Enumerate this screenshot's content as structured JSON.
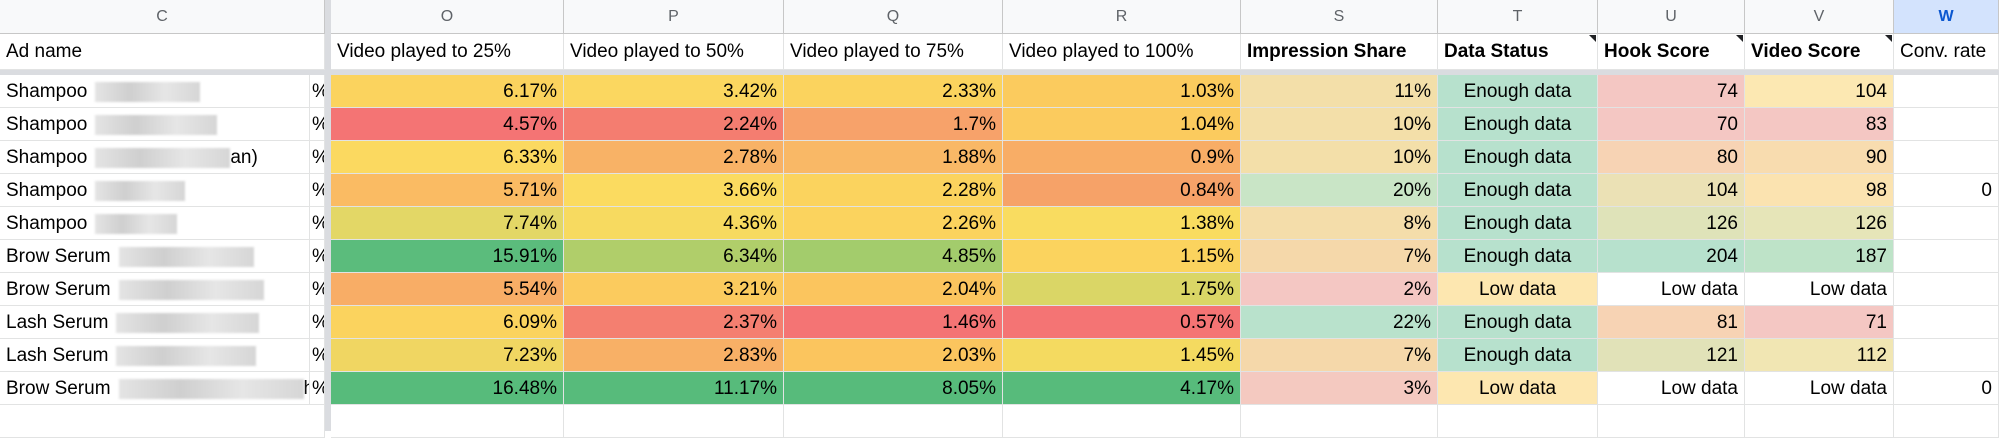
{
  "column_letters": [
    "C",
    "O",
    "P",
    "Q",
    "R",
    "S",
    "T",
    "U",
    "V",
    "W"
  ],
  "header_row": {
    "ad_name": "Ad name",
    "video_25": "Video played to 25%",
    "video_50": "Video played to 50%",
    "video_75": "Video played to 75%",
    "video_100": "Video played to 100%",
    "impression_share": "Impression Share",
    "data_status": "Data Status",
    "hook_score": "Hook Score",
    "video_score": "Video Score",
    "conv_rate": "Conv. rate"
  },
  "rows": [
    {
      "ad": "Shampoo",
      "tail": "",
      "v25": "6.17%",
      "v50": "3.42%",
      "v75": "2.33%",
      "v100": "1.03%",
      "share": "11%",
      "status": "Enough data",
      "hook": "74",
      "video": "104",
      "conv": "",
      "c25": "#fbd35e",
      "c50": "#fbd760",
      "c75": "#fbd35e",
      "c100": "#fbcb5e",
      "cshare": "#f3dfa9",
      "cstatus": "#b7e1cd",
      "chook": "#f4c7c3",
      "cvideo": "#fce8b2"
    },
    {
      "ad": "Shampoo",
      "tail": "",
      "v25": "4.57%",
      "v50": "2.24%",
      "v75": "1.7%",
      "v100": "1.04%",
      "share": "10%",
      "status": "Enough data",
      "hook": "70",
      "video": "83",
      "conv": "",
      "c25": "#f47474",
      "c50": "#f47d70",
      "c75": "#f7a26a",
      "c100": "#fbcb5e",
      "cshare": "#f3dfa9",
      "cstatus": "#b7e1cd",
      "chook": "#f4c7c3",
      "cvideo": "#f4c7c3"
    },
    {
      "ad": "Shampoo",
      "tail": "an)",
      "v25": "6.33%",
      "v50": "2.78%",
      "v75": "1.88%",
      "v100": "0.9%",
      "share": "10%",
      "status": "Enough data",
      "hook": "80",
      "video": "90",
      "conv": "",
      "c25": "#fbd960",
      "c50": "#f8b266",
      "c75": "#f9b866",
      "c100": "#f8ad66",
      "cshare": "#f3dfa9",
      "cstatus": "#b7e1cd",
      "chook": "#f7d3b4",
      "cvideo": "#f8dcaf"
    },
    {
      "ad": "Shampoo",
      "tail": "",
      "v25": "5.71%",
      "v50": "3.66%",
      "v75": "2.28%",
      "v100": "0.84%",
      "share": "20%",
      "status": "Enough data",
      "hook": "104",
      "video": "98",
      "conv": "0",
      "c25": "#fabb63",
      "c50": "#fbdb60",
      "c75": "#fbd35e",
      "c100": "#f6a268",
      "cshare": "#c9e5c6",
      "cstatus": "#b7e1cd",
      "chook": "#ebe1b5",
      "cvideo": "#fbe3b0"
    },
    {
      "ad": "Shampoo",
      "tail": "",
      "v25": "7.74%",
      "v50": "4.36%",
      "v75": "2.26%",
      "v100": "1.38%",
      "share": "8%",
      "status": "Enough data",
      "hook": "126",
      "video": "126",
      "conv": "",
      "c25": "#e3d766",
      "c50": "#f7da60",
      "c75": "#fbd35e",
      "c100": "#f9dc60",
      "cshare": "#f4ddaa",
      "cstatus": "#b7e1cd",
      "chook": "#dfe3b9",
      "cvideo": "#e6e5b8"
    },
    {
      "ad": "Brow Serum",
      "tail": "",
      "v25": "15.91%",
      "v50": "6.34%",
      "v75": "4.85%",
      "v100": "1.15%",
      "share": "7%",
      "status": "Enough data",
      "hook": "204",
      "video": "187",
      "conv": "",
      "c25": "#5bbc7c",
      "c50": "#b0ce6a",
      "c75": "#a3cc6c",
      "c100": "#fbd35e",
      "cshare": "#f5d8aa",
      "cstatus": "#b7e1cd",
      "chook": "#b7e1cd",
      "cvideo": "#bee3c8"
    },
    {
      "ad": "Brow Serum",
      "tail": "",
      "v25": "5.54%",
      "v50": "3.21%",
      "v75": "2.04%",
      "v100": "1.75%",
      "share": "2%",
      "status": "Low data",
      "hook": "Low data",
      "video": "Low data",
      "conv": "",
      "c25": "#f8ad66",
      "c50": "#fbcb5e",
      "c75": "#fbc55e",
      "c100": "#dad666",
      "cshare": "#f4c7c3",
      "cstatus": "#fde7b0",
      "chook": "#ffffff",
      "cvideo": "#ffffff"
    },
    {
      "ad": "Lash Serum",
      "tail": "",
      "v25": "6.09%",
      "v50": "2.37%",
      "v75": "1.46%",
      "v100": "0.57%",
      "share": "22%",
      "status": "Enough data",
      "hook": "81",
      "video": "71",
      "conv": "",
      "c25": "#fbd35e",
      "c50": "#f47f70",
      "c75": "#f47474",
      "c100": "#f47474",
      "cshare": "#b9e2cc",
      "cstatus": "#b7e1cd",
      "chook": "#f7d3b4",
      "cvideo": "#f4c7c3"
    },
    {
      "ad": "Lash Serum",
      "tail": "",
      "v25": "7.23%",
      "v50": "2.83%",
      "v75": "2.03%",
      "v100": "1.45%",
      "share": "7%",
      "status": "Enough data",
      "hook": "121",
      "video": "112",
      "conv": "",
      "c25": "#f0d662",
      "c50": "#f8b066",
      "c75": "#fbc55e",
      "c100": "#f4da60",
      "cshare": "#f5d8aa",
      "cstatus": "#b7e1cd",
      "chook": "#e1e2b8",
      "cvideo": "#f1e6b3"
    },
    {
      "ad": "Brow Serum",
      "tail": "h",
      "v25": "16.48%",
      "v50": "11.17%",
      "v75": "8.05%",
      "v100": "4.17%",
      "share": "3%",
      "status": "Low data",
      "hook": "Low data",
      "video": "Low data",
      "conv": "0",
      "c25": "#57bb7b",
      "c50": "#57bb7b",
      "c75": "#57bb7b",
      "c100": "#57bb7b",
      "cshare": "#f4c9c0",
      "cstatus": "#fde7b0",
      "chook": "#ffffff",
      "cvideo": "#ffffff"
    }
  ],
  "pct_prefix": "%",
  "colors": {
    "header_bg": "#f8f9fa",
    "selected_header_bg": "#d3e3fd",
    "selected_header_text": "#0b57d0",
    "grid": "#e2e3e3",
    "frozen_separator": "#dadce0"
  }
}
